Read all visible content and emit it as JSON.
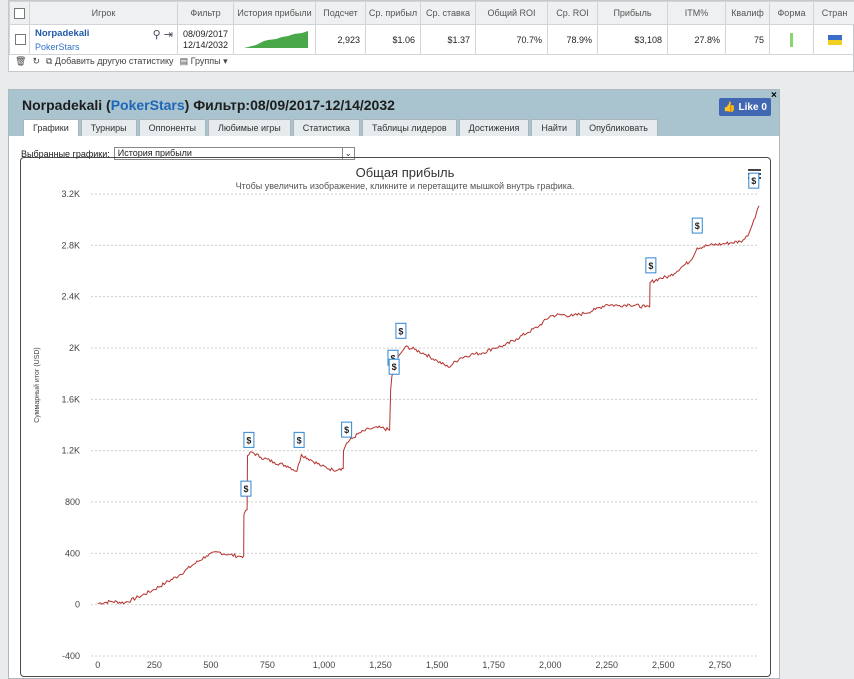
{
  "table": {
    "headers": [
      "Игрок",
      "Фильтр",
      "История прибыли",
      "Подсчет",
      "Ср. прибыл",
      "Ср. ставка",
      "Общий ROI",
      "Ср. ROI",
      "Прибыль",
      "ITM%",
      "Квалиф",
      "Форма",
      "Стран"
    ],
    "row": {
      "player": "Norpadekali",
      "site": "PokerStars",
      "date_from": "08/09/2017",
      "date_to": "12/14/2032",
      "count": "2,923",
      "avg_profit": "$1.06",
      "avg_stake": "$1.37",
      "total_roi": "70.7%",
      "avg_roi": "78.9%",
      "profit": "$3,108",
      "itm": "27.8%",
      "qualif": "75"
    }
  },
  "toolbar": {
    "add_label": "Добавить другую статистику",
    "groups_label": "Группы"
  },
  "panel": {
    "player": "Norpadekali",
    "site": "PokerStars",
    "filter": "Фильтр:08/09/2017-12/14/2032",
    "like_label": "Like 0",
    "tabs": [
      "Графики",
      "Турниры",
      "Оппоненты",
      "Любимые игры",
      "Статистика",
      "Таблицы лидеров",
      "Достижения",
      "Найти",
      "Опубликовать"
    ],
    "select_label": "Выбранные графики:",
    "select_value": "История прибыли"
  },
  "colors": {
    "line": "#b5322c",
    "sparkline": "#4aa84a",
    "marker_border": "#2f86d4"
  },
  "chart_data": {
    "type": "line",
    "title": "Общая прибыль",
    "subtitle": "Чтобы увеличить изображение, кликните и перетащите мышкой внутрь графика.",
    "ylabel": "Суммарный итог (USD)",
    "xlabel": "",
    "xlim": [
      -30,
      2923
    ],
    "ylim": [
      -400,
      3200
    ],
    "xticks": [
      0,
      250,
      500,
      750,
      1000,
      1250,
      1500,
      1750,
      2000,
      2250,
      2500,
      2750
    ],
    "yticks": [
      -400,
      0,
      400,
      800,
      1200,
      1600,
      2000,
      2400,
      2800,
      3200
    ],
    "xtick_labels": [
      "0",
      "250",
      "500",
      "750",
      "1,000",
      "1,250",
      "1,500",
      "1,750",
      "2,000",
      "2,250",
      "2,500",
      "2,750"
    ],
    "ytick_labels": [
      "-400",
      "0",
      "400",
      "800",
      "1.2K",
      "1.6K",
      "2K",
      "2.4K",
      "2.8K",
      "3.2K"
    ],
    "grid": true,
    "series": [
      {
        "points": [
          [
            0,
            10
          ],
          [
            60,
            25
          ],
          [
            120,
            15
          ],
          [
            180,
            60
          ],
          [
            240,
            110
          ],
          [
            300,
            170
          ],
          [
            360,
            230
          ],
          [
            420,
            310
          ],
          [
            480,
            380
          ],
          [
            530,
            410
          ],
          [
            580,
            390
          ],
          [
            630,
            375
          ],
          [
            645,
            380
          ],
          [
            646,
            700
          ],
          [
            660,
            740
          ],
          [
            662,
            1160
          ],
          [
            680,
            1190
          ],
          [
            720,
            1150
          ],
          [
            780,
            1110
          ],
          [
            840,
            1080
          ],
          [
            880,
            1040
          ],
          [
            900,
            1170
          ],
          [
            940,
            1130
          ],
          [
            990,
            1080
          ],
          [
            1040,
            1050
          ],
          [
            1070,
            1060
          ],
          [
            1085,
            1060
          ],
          [
            1086,
            1200
          ],
          [
            1100,
            1260
          ],
          [
            1150,
            1330
          ],
          [
            1200,
            1370
          ],
          [
            1250,
            1380
          ],
          [
            1290,
            1360
          ],
          [
            1295,
            1680
          ],
          [
            1300,
            1780
          ],
          [
            1320,
            1900
          ],
          [
            1340,
            1960
          ],
          [
            1360,
            2010
          ],
          [
            1400,
            1990
          ],
          [
            1450,
            1950
          ],
          [
            1500,
            1900
          ],
          [
            1550,
            1850
          ],
          [
            1600,
            1920
          ],
          [
            1650,
            1950
          ],
          [
            1700,
            1960
          ],
          [
            1750,
            2000
          ],
          [
            1800,
            2020
          ],
          [
            1850,
            2070
          ],
          [
            1900,
            2120
          ],
          [
            1950,
            2170
          ],
          [
            2000,
            2250
          ],
          [
            2050,
            2260
          ],
          [
            2100,
            2250
          ],
          [
            2150,
            2270
          ],
          [
            2200,
            2300
          ],
          [
            2250,
            2340
          ],
          [
            2300,
            2330
          ],
          [
            2350,
            2340
          ],
          [
            2420,
            2320
          ],
          [
            2440,
            2320
          ],
          [
            2441,
            2510
          ],
          [
            2480,
            2540
          ],
          [
            2530,
            2560
          ],
          [
            2580,
            2630
          ],
          [
            2620,
            2680
          ],
          [
            2650,
            2780
          ],
          [
            2700,
            2800
          ],
          [
            2760,
            2810
          ],
          [
            2800,
            2820
          ],
          [
            2840,
            2830
          ],
          [
            2860,
            2850
          ],
          [
            2880,
            2900
          ],
          [
            2900,
            3000
          ],
          [
            2923,
            3108
          ]
        ]
      }
    ],
    "markers": [
      {
        "x": 655,
        "y": 830,
        "label": "$"
      },
      {
        "x": 668,
        "y": 1210,
        "label": "$"
      },
      {
        "x": 890,
        "y": 1210,
        "label": "$"
      },
      {
        "x": 1100,
        "y": 1290,
        "label": "$"
      },
      {
        "x": 1305,
        "y": 1850,
        "label": "$"
      },
      {
        "x": 1310,
        "y": 1780,
        "label": "$"
      },
      {
        "x": 1340,
        "y": 2060,
        "label": "$"
      },
      {
        "x": 2445,
        "y": 2570,
        "label": "$"
      },
      {
        "x": 2650,
        "y": 2880,
        "label": "$"
      },
      {
        "x": 2900,
        "y": 3230,
        "label": "$"
      }
    ]
  }
}
